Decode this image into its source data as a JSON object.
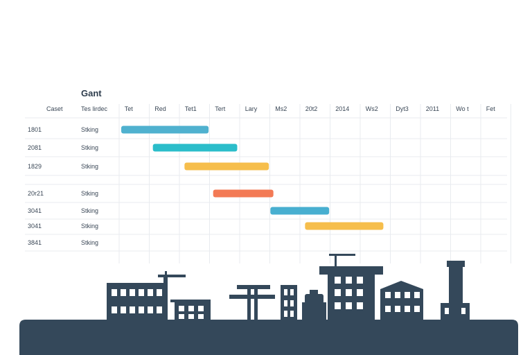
{
  "chart_data": {
    "type": "gantt",
    "title": "Gant",
    "columns": [
      "Caset",
      "Tes lirdec"
    ],
    "timeline_labels": [
      "Tet",
      "Red",
      "Tet1",
      "Tert",
      "Lary",
      "Ms2",
      "20t2",
      "2014",
      "Ws2",
      "Dyt3",
      "2011",
      "Wo t",
      "Fet"
    ],
    "rows": [
      {
        "id": "1801",
        "task": "Stking",
        "start": 0.0,
        "end": 2.9,
        "color": "#4fb1cf"
      },
      {
        "id": "2081",
        "task": "Stking",
        "start": 1.05,
        "end": 3.85,
        "color": "#2bbdca"
      },
      {
        "id": "1829",
        "task": "Stking",
        "start": 2.1,
        "end": 4.9,
        "color": "#f6be4c"
      },
      {
        "id": "20r21",
        "task": "Stking",
        "start": 3.05,
        "end": 5.05,
        "color": "#f37a55"
      },
      {
        "id": "3041",
        "task": "Stking",
        "start": 4.95,
        "end": 6.9,
        "color": "#48afd0"
      },
      {
        "id": "3041",
        "task": "Stking",
        "start": 6.1,
        "end": 8.7,
        "color": "#f6be4c"
      },
      {
        "id": "3841",
        "task": "Stking",
        "start": null,
        "end": null,
        "color": ""
      }
    ],
    "grid": true,
    "colors": {
      "ground": "#34485a",
      "buildings": "#34485a",
      "grid": "#e8ebef"
    }
  }
}
